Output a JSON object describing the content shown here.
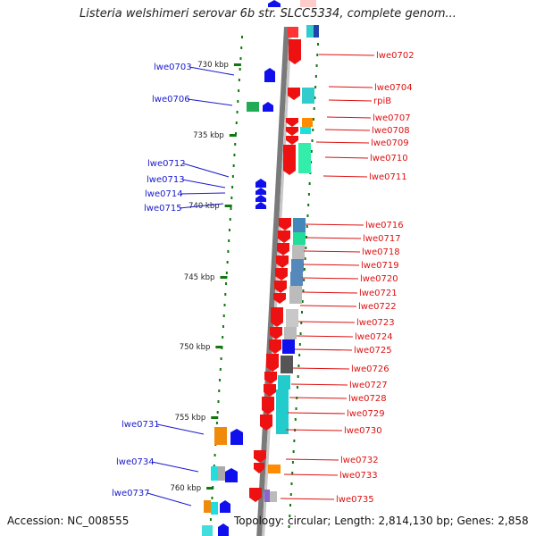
{
  "title": "Listeria welshimeri serovar 6b str. SLCC5334, complete genom...",
  "footer": {
    "accession": "Accession: NC_008555",
    "topology": "Topology: circular; Length: 2,814,130 bp; Genes: 2,858"
  },
  "colors": {
    "left_label": "#1a1acc",
    "right_label": "#dd1111",
    "tick": "#117711",
    "backbone": "#7a7a7a"
  },
  "kbp_ticks": [
    "730 kbp",
    "735 kbp",
    "740 kbp",
    "745 kbp",
    "750 kbp",
    "755 kbp",
    "760 kbp"
  ],
  "left_genes": [
    "lwe0703",
    "lwe0706",
    "lwe0712",
    "lwe0713",
    "lwe0714",
    "lwe0715",
    "lwe0731",
    "lwe0734",
    "lwe0737"
  ],
  "right_genes": [
    "lwe0702",
    "lwe0704",
    "rpiB",
    "lwe0707",
    "lwe0708",
    "lwe0709",
    "lwe0710",
    "lwe0711",
    "lwe0716",
    "lwe0717",
    "lwe0718",
    "lwe0719",
    "lwe0720",
    "lwe0721",
    "lwe0722",
    "lwe0723",
    "lwe0724",
    "lwe0725",
    "lwe0726",
    "lwe0727",
    "lwe0728",
    "lwe0729",
    "lwe0730",
    "lwe0732",
    "lwe0733",
    "lwe0735"
  ]
}
